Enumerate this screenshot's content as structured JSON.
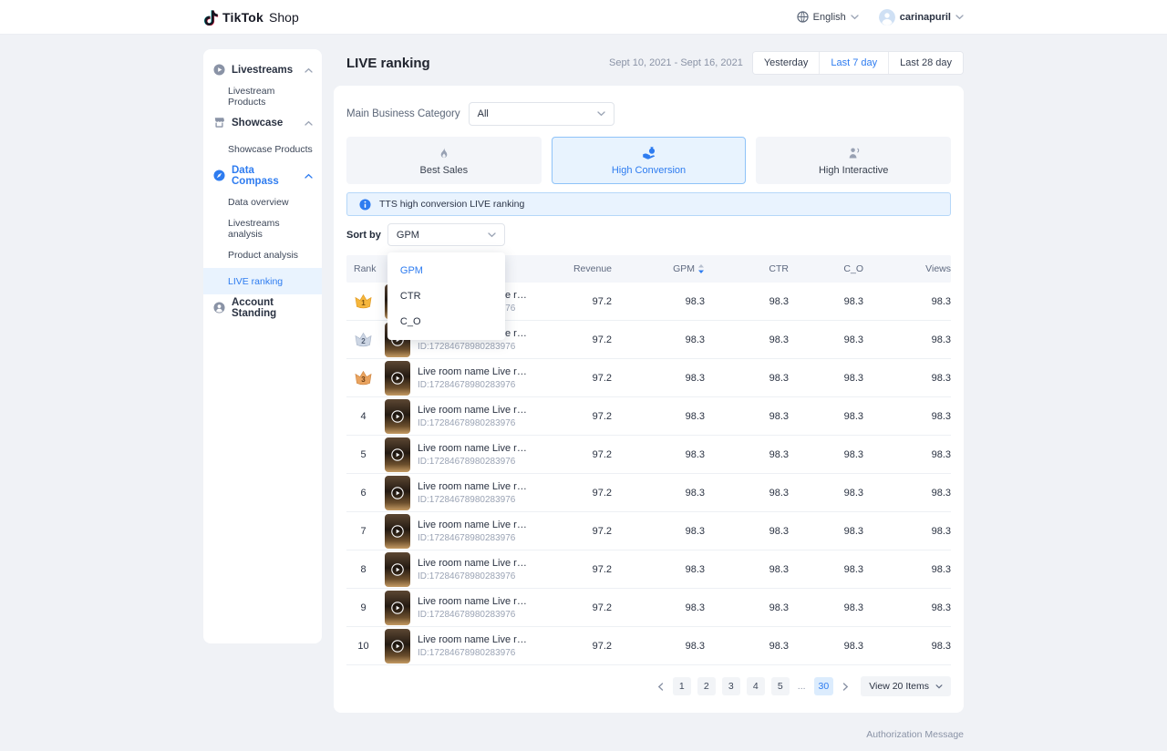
{
  "topbar": {
    "brand": "TikTok",
    "brand_suffix": "Shop",
    "language": "English",
    "username": "carinapuril"
  },
  "sidebar": {
    "items": [
      {
        "label": "Livestreams",
        "type": "section",
        "icon": "live-icon",
        "expandable": true,
        "active": false
      },
      {
        "label": "Livestream Products",
        "type": "child",
        "selected": false
      },
      {
        "label": "Showcase",
        "type": "section",
        "icon": "showcase-icon",
        "expandable": true,
        "active": false
      },
      {
        "label": "Showcase Products",
        "type": "child",
        "selected": false
      },
      {
        "label": "Data Compass",
        "type": "section",
        "icon": "data-compass-icon",
        "expandable": true,
        "active": true
      },
      {
        "label": "Data overview",
        "type": "child",
        "selected": false
      },
      {
        "label": "Livestreams analysis",
        "type": "child",
        "selected": false
      },
      {
        "label": "Product analysis",
        "type": "child",
        "selected": false
      },
      {
        "label": "LIVE ranking",
        "type": "child",
        "selected": true
      },
      {
        "label": "Account Standing",
        "type": "section",
        "icon": "account-icon",
        "expandable": false,
        "active": false
      }
    ]
  },
  "header": {
    "title": "LIVE ranking",
    "date_range": "Sept 10, 2021 - Sept 16, 2021",
    "ranges": [
      {
        "label": "Yesterday",
        "active": false
      },
      {
        "label": "Last 7 day",
        "active": true
      },
      {
        "label": "Last 28 day",
        "active": false
      }
    ]
  },
  "filter": {
    "label": "Main Business Category",
    "value": "All"
  },
  "tabs": [
    {
      "label": "Best Sales",
      "icon": "flame-icon",
      "active": false
    },
    {
      "label": "High Conversion",
      "icon": "hand-coin-icon",
      "active": true
    },
    {
      "label": "High Interactive",
      "icon": "interactive-icon",
      "active": false
    }
  ],
  "banner": {
    "text": "TTS high conversion LIVE ranking"
  },
  "sort": {
    "label": "Sort by",
    "value": "GPM",
    "options": [
      {
        "label": "GPM",
        "selected": true
      },
      {
        "label": "CTR",
        "selected": false
      },
      {
        "label": "C_O",
        "selected": false
      }
    ]
  },
  "table": {
    "columns": [
      "Rank",
      "",
      "Revenue",
      "GPM",
      "CTR",
      "C_O",
      "Views"
    ],
    "sorted_column": "GPM",
    "rows": [
      {
        "rank": "1",
        "medal": "gold",
        "title": "Live room name Live room...",
        "room_id": "ID:17284678980283976",
        "revenue": "97.2",
        "gpm": "98.3",
        "ctr": "98.3",
        "c_o": "98.3",
        "views": "98.3"
      },
      {
        "rank": "2",
        "medal": "silver",
        "title": "Live room name Live room...",
        "room_id": "ID:17284678980283976",
        "revenue": "97.2",
        "gpm": "98.3",
        "ctr": "98.3",
        "c_o": "98.3",
        "views": "98.3"
      },
      {
        "rank": "3",
        "medal": "bronze",
        "title": "Live room name Live room...",
        "room_id": "ID:17284678980283976",
        "revenue": "97.2",
        "gpm": "98.3",
        "ctr": "98.3",
        "c_o": "98.3",
        "views": "98.3"
      },
      {
        "rank": "4",
        "medal": null,
        "title": "Live room name Live room...",
        "room_id": "ID:17284678980283976",
        "revenue": "97.2",
        "gpm": "98.3",
        "ctr": "98.3",
        "c_o": "98.3",
        "views": "98.3"
      },
      {
        "rank": "5",
        "medal": null,
        "title": "Live room name Live room...",
        "room_id": "ID:17284678980283976",
        "revenue": "97.2",
        "gpm": "98.3",
        "ctr": "98.3",
        "c_o": "98.3",
        "views": "98.3"
      },
      {
        "rank": "6",
        "medal": null,
        "title": "Live room name Live room...",
        "room_id": "ID:17284678980283976",
        "revenue": "97.2",
        "gpm": "98.3",
        "ctr": "98.3",
        "c_o": "98.3",
        "views": "98.3"
      },
      {
        "rank": "7",
        "medal": null,
        "title": "Live room name Live room...",
        "room_id": "ID:17284678980283976",
        "revenue": "97.2",
        "gpm": "98.3",
        "ctr": "98.3",
        "c_o": "98.3",
        "views": "98.3"
      },
      {
        "rank": "8",
        "medal": null,
        "title": "Live room name Live room...",
        "room_id": "ID:17284678980283976",
        "revenue": "97.2",
        "gpm": "98.3",
        "ctr": "98.3",
        "c_o": "98.3",
        "views": "98.3"
      },
      {
        "rank": "9",
        "medal": null,
        "title": "Live room name Live room...",
        "room_id": "ID:17284678980283976",
        "revenue": "97.2",
        "gpm": "98.3",
        "ctr": "98.3",
        "c_o": "98.3",
        "views": "98.3"
      },
      {
        "rank": "10",
        "medal": null,
        "title": "Live room name Live room...",
        "room_id": "ID:17284678980283976",
        "revenue": "97.2",
        "gpm": "98.3",
        "ctr": "98.3",
        "c_o": "98.3",
        "views": "98.3"
      }
    ]
  },
  "pagination": {
    "pages": [
      "1",
      "2",
      "3",
      "4",
      "5",
      "...",
      "30"
    ],
    "active": "30",
    "view_label": "View 20 Items"
  },
  "footer": {
    "link": "Authorization Message"
  },
  "colors": {
    "accent": "#2e7cf0",
    "accent_light": "#e8f3fe",
    "medal_gold": "#f5b63c",
    "medal_silver": "#c9d3e1",
    "medal_bronze": "#e8a262"
  }
}
